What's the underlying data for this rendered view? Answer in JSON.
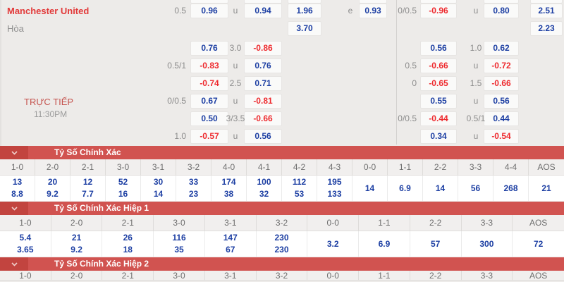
{
  "odds": {
    "team": "Manchester United",
    "draw_label": "Hòa",
    "live_label": "TRỰC TIẾP",
    "live_time": "11:30PM",
    "rows": [
      {
        "cells": [
          {
            "c": "box1",
            "t": "",
            "s": "box"
          },
          {
            "c": "mid1",
            "t": "u",
            "s": "label"
          },
          {
            "c": "box2",
            "t": "",
            "s": "box"
          },
          {
            "c": "box3",
            "t": "",
            "s": "box"
          },
          {
            "c": "box4",
            "t": "",
            "s": "box"
          },
          {
            "c": "box5",
            "t": "",
            "s": "box"
          },
          {
            "c": "mid3",
            "t": "u",
            "s": "label"
          },
          {
            "c": "box6",
            "t": "",
            "s": "box"
          },
          {
            "c": "box7",
            "t": "",
            "s": "box"
          }
        ]
      },
      {
        "cells": [
          {
            "c": "hcp1",
            "t": "0.5",
            "s": "label"
          },
          {
            "c": "box1",
            "t": "0.96",
            "s": "pos"
          },
          {
            "c": "mid1",
            "t": "u",
            "s": "label"
          },
          {
            "c": "box2",
            "t": "0.94",
            "s": "pos"
          },
          {
            "c": "box3",
            "t": "1.96",
            "s": "pos"
          },
          {
            "c": "mid2",
            "t": "e",
            "s": "label"
          },
          {
            "c": "box4",
            "t": "0.93",
            "s": "pos"
          },
          {
            "c": "hcp2",
            "t": "0/0.5",
            "s": "label"
          },
          {
            "c": "box5",
            "t": "-0.96",
            "s": "neg"
          },
          {
            "c": "mid3",
            "t": "u",
            "s": "label"
          },
          {
            "c": "box6",
            "t": "0.80",
            "s": "pos"
          },
          {
            "c": "box7",
            "t": "2.51",
            "s": "pos"
          }
        ]
      },
      {
        "cells": [
          {
            "c": "box3",
            "t": "3.70",
            "s": "pos"
          },
          {
            "c": "box7",
            "t": "2.23",
            "s": "pos"
          }
        ]
      },
      {
        "cells": [
          {
            "c": "box1",
            "t": "0.76",
            "s": "pos"
          },
          {
            "c": "mid1",
            "t": "3.0",
            "s": "label"
          },
          {
            "c": "box2",
            "t": "-0.86",
            "s": "neg"
          },
          {
            "c": "box5",
            "t": "0.56",
            "s": "pos"
          },
          {
            "c": "mid3",
            "t": "1.0",
            "s": "label"
          },
          {
            "c": "box6",
            "t": "0.62",
            "s": "pos"
          }
        ]
      },
      {
        "cells": [
          {
            "c": "hcp1",
            "t": "0.5/1",
            "s": "label"
          },
          {
            "c": "box1",
            "t": "-0.83",
            "s": "neg"
          },
          {
            "c": "mid1",
            "t": "u",
            "s": "label"
          },
          {
            "c": "box2",
            "t": "0.76",
            "s": "pos"
          },
          {
            "c": "hcp2",
            "t": "0.5",
            "s": "label"
          },
          {
            "c": "box5",
            "t": "-0.66",
            "s": "neg"
          },
          {
            "c": "mid3",
            "t": "u",
            "s": "label"
          },
          {
            "c": "box6",
            "t": "-0.72",
            "s": "neg"
          }
        ]
      },
      {
        "cells": [
          {
            "c": "box1",
            "t": "-0.74",
            "s": "neg"
          },
          {
            "c": "mid1",
            "t": "2.5",
            "s": "label"
          },
          {
            "c": "box2",
            "t": "0.71",
            "s": "pos"
          },
          {
            "c": "hcp2",
            "t": "0",
            "s": "label"
          },
          {
            "c": "box5",
            "t": "-0.65",
            "s": "neg"
          },
          {
            "c": "mid3",
            "t": "1.5",
            "s": "label"
          },
          {
            "c": "box6",
            "t": "-0.66",
            "s": "neg"
          }
        ]
      },
      {
        "cells": [
          {
            "c": "hcp1",
            "t": "0/0.5",
            "s": "label"
          },
          {
            "c": "box1",
            "t": "0.67",
            "s": "pos"
          },
          {
            "c": "mid1",
            "t": "u",
            "s": "label"
          },
          {
            "c": "box2",
            "t": "-0.81",
            "s": "neg"
          },
          {
            "c": "box5",
            "t": "0.55",
            "s": "pos"
          },
          {
            "c": "mid3",
            "t": "u",
            "s": "label"
          },
          {
            "c": "box6",
            "t": "0.56",
            "s": "pos"
          }
        ]
      },
      {
        "cells": [
          {
            "c": "box1",
            "t": "0.50",
            "s": "pos"
          },
          {
            "c": "mid1",
            "t": "3/3.5",
            "s": "label"
          },
          {
            "c": "box2",
            "t": "-0.66",
            "s": "neg"
          },
          {
            "c": "hcp2",
            "t": "0/0.5",
            "s": "label"
          },
          {
            "c": "box5",
            "t": "-0.44",
            "s": "neg"
          },
          {
            "c": "mid3",
            "t": "0.5/1",
            "s": "label"
          },
          {
            "c": "box6",
            "t": "0.44",
            "s": "pos"
          }
        ]
      },
      {
        "cells": [
          {
            "c": "hcp1",
            "t": "1.0",
            "s": "label"
          },
          {
            "c": "box1",
            "t": "-0.57",
            "s": "neg"
          },
          {
            "c": "mid1",
            "t": "u",
            "s": "label"
          },
          {
            "c": "box2",
            "t": "0.56",
            "s": "pos"
          },
          {
            "c": "box5",
            "t": "0.34",
            "s": "pos"
          },
          {
            "c": "mid3",
            "t": "u",
            "s": "label"
          },
          {
            "c": "box6",
            "t": "-0.54",
            "s": "neg"
          }
        ]
      }
    ]
  },
  "score_sections": [
    {
      "title": "Tỷ Số Chính Xác",
      "columns": [
        {
          "score": "1-0",
          "odds": [
            "13",
            "8.8"
          ]
        },
        {
          "score": "2-0",
          "odds": [
            "20",
            "9.2"
          ]
        },
        {
          "score": "2-1",
          "odds": [
            "12",
            "7.7"
          ]
        },
        {
          "score": "3-0",
          "odds": [
            "52",
            "16"
          ]
        },
        {
          "score": "3-1",
          "odds": [
            "30",
            "14"
          ]
        },
        {
          "score": "3-2",
          "odds": [
            "33",
            "23"
          ]
        },
        {
          "score": "4-0",
          "odds": [
            "174",
            "38"
          ]
        },
        {
          "score": "4-1",
          "odds": [
            "100",
            "32"
          ]
        },
        {
          "score": "4-2",
          "odds": [
            "112",
            "53"
          ]
        },
        {
          "score": "4-3",
          "odds": [
            "195",
            "133"
          ]
        },
        {
          "score": "0-0",
          "odds": [
            "14"
          ]
        },
        {
          "score": "1-1",
          "odds": [
            "6.9"
          ]
        },
        {
          "score": "2-2",
          "odds": [
            "14"
          ]
        },
        {
          "score": "3-3",
          "odds": [
            "56"
          ]
        },
        {
          "score": "4-4",
          "odds": [
            "268"
          ]
        },
        {
          "score": "AOS",
          "odds": [
            "21"
          ]
        }
      ]
    },
    {
      "title": "Tỷ Số Chính Xác Hiệp 1",
      "columns": [
        {
          "score": "1-0",
          "odds": [
            "5.4",
            "3.65"
          ]
        },
        {
          "score": "2-0",
          "odds": [
            "21",
            "9.2"
          ]
        },
        {
          "score": "2-1",
          "odds": [
            "26",
            "18"
          ]
        },
        {
          "score": "3-0",
          "odds": [
            "116",
            "35"
          ]
        },
        {
          "score": "3-1",
          "odds": [
            "147",
            "67"
          ]
        },
        {
          "score": "3-2",
          "odds": [
            "230",
            "230"
          ]
        },
        {
          "score": "0-0",
          "odds": [
            "3.2"
          ]
        },
        {
          "score": "1-1",
          "odds": [
            "6.9"
          ]
        },
        {
          "score": "2-2",
          "odds": [
            "57"
          ]
        },
        {
          "score": "3-3",
          "odds": [
            "300"
          ]
        },
        {
          "score": "AOS",
          "odds": [
            "72"
          ]
        }
      ]
    },
    {
      "title": "Tỷ Số Chính Xác Hiệp 2",
      "columns": [
        {
          "score": "1-0",
          "odds": []
        },
        {
          "score": "2-0",
          "odds": []
        },
        {
          "score": "2-1",
          "odds": []
        },
        {
          "score": "3-0",
          "odds": []
        },
        {
          "score": "3-1",
          "odds": []
        },
        {
          "score": "3-2",
          "odds": []
        },
        {
          "score": "0-0",
          "odds": []
        },
        {
          "score": "1-1",
          "odds": []
        },
        {
          "score": "2-2",
          "odds": []
        },
        {
          "score": "3-3",
          "odds": []
        },
        {
          "score": "AOS",
          "odds": []
        }
      ]
    }
  ],
  "colors": {
    "banner_red": "#d15350",
    "banner_dark_red": "#c2443f",
    "odds_blue": "#1d3fa3",
    "odds_negative_red": "#ee2a2e",
    "team_red": "#e23a3a",
    "background_gray": "#edebe9"
  }
}
